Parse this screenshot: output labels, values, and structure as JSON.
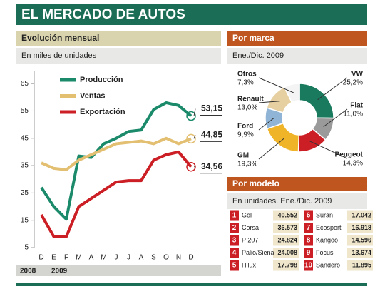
{
  "header": {
    "title": "EL MERCADO DE AUTOS"
  },
  "chart_data": [
    {
      "type": "line",
      "title": "Evolución mensual",
      "subtitle": "En miles de unidades",
      "categories": [
        "D",
        "E",
        "F",
        "M",
        "A",
        "M",
        "J",
        "J",
        "A",
        "S",
        "O",
        "N",
        "D"
      ],
      "annotations": [
        "2008",
        "2009"
      ],
      "ylim": [
        5,
        67
      ],
      "yticks": [
        5,
        15,
        25,
        35,
        45,
        55,
        65
      ],
      "series": [
        {
          "name": "Producción",
          "color": "#1a8a6a",
          "values": [
            27,
            20,
            15.4,
            38.5,
            38,
            43,
            45,
            47.5,
            48,
            55.5,
            58,
            57,
            53.15
          ],
          "value_labels": [
            null,
            null,
            null,
            null,
            null,
            null,
            null,
            null,
            null,
            null,
            null,
            null,
            "53,15"
          ]
        },
        {
          "name": "Ventas",
          "color": "#e3bf72",
          "values": [
            36,
            34,
            33.5,
            37,
            39,
            41,
            43,
            43.5,
            44,
            43,
            45,
            43,
            44.85
          ],
          "value_labels": [
            null,
            null,
            null,
            null,
            null,
            null,
            null,
            null,
            null,
            null,
            null,
            null,
            "44,85"
          ]
        },
        {
          "name": "Exportación",
          "color": "#cc1f25",
          "values": [
            17,
            9,
            9,
            20,
            23,
            26,
            29,
            29.5,
            29.5,
            37,
            39,
            40,
            34.56
          ],
          "value_labels": [
            null,
            null,
            null,
            null,
            null,
            null,
            null,
            null,
            null,
            null,
            null,
            null,
            "34,56"
          ]
        }
      ]
    },
    {
      "type": "pie",
      "title": "Por marca",
      "subtitle": "Ene./Dic. 2009",
      "categories": [
        "VW",
        "Fiat",
        "Peugeot",
        "GM",
        "Ford",
        "Renault",
        "Otros"
      ],
      "values": [
        25.2,
        11.0,
        14.3,
        19.3,
        9.9,
        13.0,
        7.3
      ],
      "value_labels": [
        "25,2%",
        "11,0%",
        "14,3%",
        "19,3%",
        "9,9%",
        "13,0%",
        "7,3%"
      ],
      "colors": [
        "#1a7a5e",
        "#9a9a9a",
        "#cc1f25",
        "#f0b429",
        "#8fb4d6",
        "#e6cfa1",
        "#f4f4f4"
      ]
    }
  ],
  "table": {
    "title": "Por modelo",
    "subtitle": "En unidades. Ene./Dic. 2009",
    "rows": [
      [
        "1",
        "Gol",
        "40.552"
      ],
      [
        "2",
        "Corsa",
        "36.573"
      ],
      [
        "3",
        "P 207",
        "24.824"
      ],
      [
        "4",
        "Palio/Siena",
        "24.008"
      ],
      [
        "5",
        "Hilux",
        "17.798"
      ],
      [
        "6",
        "Surán",
        "17.042"
      ],
      [
        "7",
        "Ecosport",
        "16.918"
      ],
      [
        "8",
        "Kangoo",
        "14.596"
      ],
      [
        "9",
        "Focus",
        "13.674"
      ],
      [
        "10",
        "Sandero",
        "11.895"
      ]
    ]
  }
}
